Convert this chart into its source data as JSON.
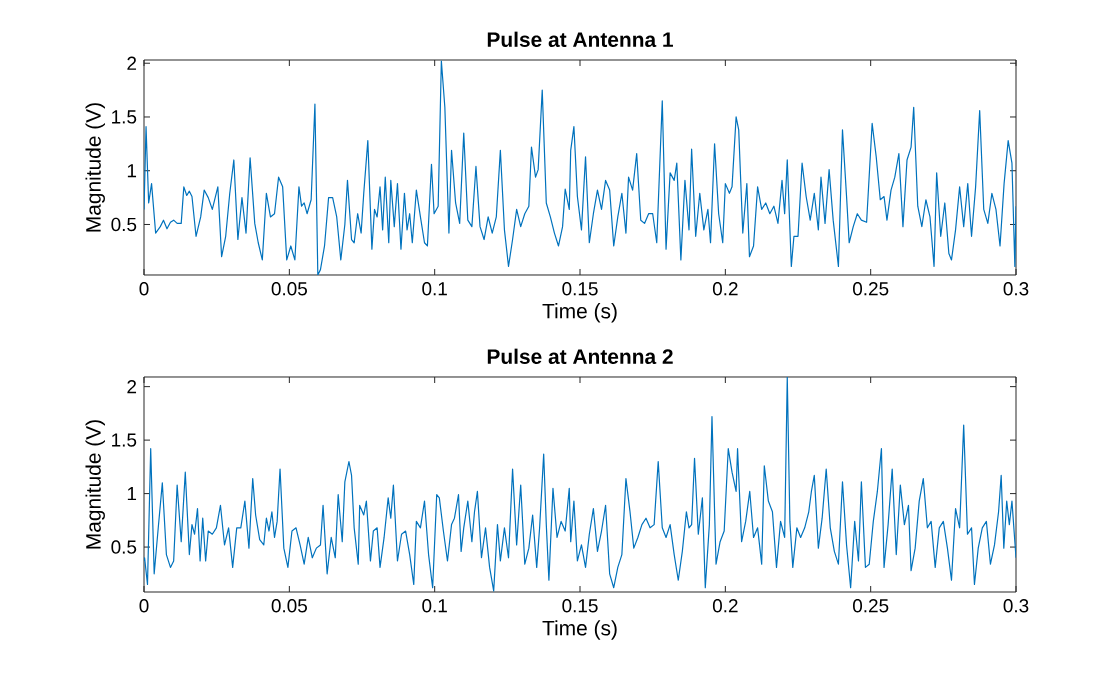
{
  "chart_data": [
    {
      "type": "line",
      "title": "Pulse at Antenna 1",
      "xlabel": "Time (s)",
      "ylabel": "Magnitude (V)",
      "xlim": [
        0,
        0.3
      ],
      "ylim": [
        0.03,
        2.03
      ],
      "xticks": [
        0,
        0.05,
        0.1,
        0.15,
        0.2,
        0.25,
        0.3
      ],
      "yticks": [
        0.5,
        1,
        1.5,
        2
      ],
      "x": [
        0,
        0.0007,
        0.0016,
        0.0026,
        0.004,
        0.0056,
        0.0067,
        0.0079,
        0.0091,
        0.0102,
        0.0114,
        0.0128,
        0.0137,
        0.0147,
        0.0156,
        0.0165,
        0.0179,
        0.0195,
        0.0207,
        0.0221,
        0.0235,
        0.0254,
        0.0267,
        0.0281,
        0.0295,
        0.0309,
        0.0323,
        0.0337,
        0.0351,
        0.0365,
        0.0381,
        0.0393,
        0.0407,
        0.0421,
        0.0435,
        0.0449,
        0.0463,
        0.0477,
        0.0491,
        0.0505,
        0.0519,
        0.0533,
        0.0542,
        0.0551,
        0.0561,
        0.0575,
        0.0588,
        0.0598,
        0.0607,
        0.0621,
        0.0635,
        0.0649,
        0.0663,
        0.0677,
        0.0691,
        0.07,
        0.0714,
        0.0723,
        0.0735,
        0.0747,
        0.0756,
        0.077,
        0.0784,
        0.0793,
        0.0802,
        0.0812,
        0.0821,
        0.083,
        0.0842,
        0.0849,
        0.0861,
        0.0872,
        0.0884,
        0.0896,
        0.0905,
        0.0914,
        0.0923,
        0.0937,
        0.0951,
        0.0965,
        0.0975,
        0.0989,
        0.0998,
        0.1012,
        0.1023,
        0.1035,
        0.1049,
        0.1058,
        0.1072,
        0.1086,
        0.11,
        0.1114,
        0.1128,
        0.1142,
        0.1156,
        0.117,
        0.1184,
        0.1198,
        0.1212,
        0.1226,
        0.124,
        0.1254,
        0.1268,
        0.1282,
        0.1296,
        0.131,
        0.1324,
        0.1333,
        0.1347,
        0.1356,
        0.137,
        0.1384,
        0.1398,
        0.1412,
        0.1426,
        0.144,
        0.1449,
        0.1463,
        0.1468,
        0.1479,
        0.1491,
        0.1505,
        0.1519,
        0.1532,
        0.1546,
        0.156,
        0.1574,
        0.1588,
        0.1602,
        0.1616,
        0.163,
        0.1644,
        0.1658,
        0.1667,
        0.1681,
        0.1695,
        0.1709,
        0.1722,
        0.1736,
        0.175,
        0.1764,
        0.1783,
        0.1796,
        0.181,
        0.1824,
        0.1833,
        0.1847,
        0.1861,
        0.1875,
        0.1884,
        0.1898,
        0.1912,
        0.1926,
        0.194,
        0.1949,
        0.1963,
        0.1977,
        0.1991,
        0.2,
        0.2014,
        0.2023,
        0.2037,
        0.2046,
        0.206,
        0.2074,
        0.2083,
        0.2097,
        0.2111,
        0.2125,
        0.2139,
        0.2153,
        0.2167,
        0.2181,
        0.2195,
        0.2204,
        0.2213,
        0.2227,
        0.2236,
        0.225,
        0.2264,
        0.2278,
        0.2292,
        0.2306,
        0.232,
        0.2329,
        0.2343,
        0.2357,
        0.2371,
        0.2389,
        0.2403,
        0.2417,
        0.2426,
        0.244,
        0.2454,
        0.2468,
        0.2486,
        0.2505,
        0.2519,
        0.2533,
        0.2546,
        0.2556,
        0.257,
        0.2583,
        0.2597,
        0.2611,
        0.2625,
        0.2639,
        0.2648,
        0.2662,
        0.2676,
        0.269,
        0.2704,
        0.2718,
        0.2727,
        0.2741,
        0.2755,
        0.2769,
        0.2778,
        0.2792,
        0.2806,
        0.282,
        0.2834,
        0.2847,
        0.2861,
        0.2875,
        0.2889,
        0.2903,
        0.2917,
        0.2931,
        0.2945,
        0.2959,
        0.2973,
        0.2986,
        0.2996,
        0.3
      ],
      "series": [
        {
          "color": "#0072bd",
          "values": [
            0.64,
            1.41,
            0.7,
            0.88,
            0.42,
            0.48,
            0.54,
            0.46,
            0.52,
            0.54,
            0.51,
            0.51,
            0.85,
            0.77,
            0.81,
            0.76,
            0.39,
            0.57,
            0.82,
            0.75,
            0.64,
            0.85,
            0.2,
            0.39,
            0.79,
            1.1,
            0.36,
            0.75,
            0.42,
            1.12,
            0.51,
            0.33,
            0.17,
            0.79,
            0.57,
            0.6,
            0.94,
            0.85,
            0.17,
            0.3,
            0.17,
            0.85,
            0.67,
            0.7,
            0.6,
            0.73,
            1.62,
            0.03,
            0.08,
            0.3,
            0.75,
            0.75,
            0.57,
            0.17,
            0.5,
            0.91,
            0.36,
            0.33,
            0.6,
            0.42,
            0.79,
            1.28,
            0.27,
            0.64,
            0.57,
            0.85,
            0.45,
            0.94,
            0.33,
            0.91,
            0.48,
            0.88,
            0.27,
            0.79,
            0.45,
            0.6,
            0.33,
            0.82,
            0.57,
            0.33,
            0.3,
            1.06,
            0.6,
            0.67,
            2.02,
            1.59,
            0.42,
            1.19,
            0.7,
            0.51,
            1.35,
            0.54,
            0.48,
            1.04,
            0.48,
            0.36,
            0.57,
            0.42,
            0.57,
            1.19,
            0.45,
            0.11,
            0.36,
            0.64,
            0.48,
            0.6,
            0.67,
            1.22,
            0.94,
            1.01,
            1.75,
            0.7,
            0.57,
            0.42,
            0.3,
            0.48,
            0.83,
            0.64,
            1.19,
            1.41,
            0.76,
            0.45,
            1.13,
            0.33,
            0.6,
            0.82,
            0.64,
            0.91,
            0.82,
            0.3,
            0.57,
            0.79,
            0.42,
            0.94,
            0.82,
            1.16,
            0.54,
            0.51,
            0.6,
            0.6,
            0.33,
            1.65,
            0.27,
            0.98,
            0.91,
            1.07,
            0.17,
            0.91,
            0.45,
            1.2,
            0.39,
            0.79,
            0.45,
            0.64,
            0.33,
            1.25,
            0.6,
            0.33,
            0.88,
            0.79,
            0.85,
            1.5,
            1.38,
            0.42,
            0.88,
            0.2,
            0.3,
            0.85,
            0.64,
            0.7,
            0.6,
            0.67,
            0.51,
            0.91,
            0.6,
            1.1,
            0.11,
            0.39,
            0.39,
            1.07,
            0.76,
            0.54,
            0.79,
            0.45,
            0.94,
            0.51,
            1.01,
            0.54,
            0.11,
            1.38,
            0.76,
            0.33,
            0.48,
            0.6,
            0.54,
            0.52,
            1.44,
            1.13,
            0.73,
            0.76,
            0.54,
            0.82,
            0.94,
            1.16,
            0.48,
            1.1,
            1.22,
            1.59,
            0.67,
            0.48,
            0.73,
            0.57,
            0.11,
            0.98,
            0.39,
            0.7,
            0.23,
            0.17,
            0.45,
            0.85,
            0.48,
            0.88,
            0.39,
            0.85,
            1.56,
            0.64,
            0.51,
            0.79,
            0.64,
            0.3,
            0.88,
            1.28,
            1.07,
            0.11,
            0.67
          ]
        }
      ]
    },
    {
      "type": "line",
      "title": "Pulse at Antenna 2",
      "xlabel": "Time (s)",
      "ylabel": "Magnitude (V)",
      "xlim": [
        0,
        0.3
      ],
      "ylim": [
        0.08,
        2.09
      ],
      "xticks": [
        0,
        0.05,
        0.1,
        0.15,
        0.2,
        0.25,
        0.3
      ],
      "yticks": [
        0.5,
        1,
        1.5,
        2
      ],
      "x": [
        0,
        0.0002,
        0.0012,
        0.0023,
        0.0035,
        0.0049,
        0.0063,
        0.0077,
        0.0091,
        0.0102,
        0.0114,
        0.0128,
        0.0142,
        0.0156,
        0.0165,
        0.0174,
        0.0184,
        0.0193,
        0.0202,
        0.0212,
        0.0221,
        0.0235,
        0.0249,
        0.0263,
        0.0277,
        0.0291,
        0.0305,
        0.0319,
        0.0333,
        0.0347,
        0.0361,
        0.0374,
        0.0384,
        0.0398,
        0.0412,
        0.0421,
        0.043,
        0.044,
        0.0449,
        0.0458,
        0.0468,
        0.0481,
        0.0495,
        0.0509,
        0.0523,
        0.0537,
        0.0551,
        0.0565,
        0.0579,
        0.0593,
        0.0607,
        0.0616,
        0.063,
        0.0644,
        0.0658,
        0.0668,
        0.0682,
        0.0691,
        0.0705,
        0.0714,
        0.0723,
        0.0737,
        0.0742,
        0.0756,
        0.0765,
        0.0779,
        0.0789,
        0.0802,
        0.0812,
        0.0826,
        0.084,
        0.0849,
        0.0858,
        0.0872,
        0.0886,
        0.09,
        0.0914,
        0.0928,
        0.0937,
        0.0951,
        0.0965,
        0.0979,
        0.0993,
        0.1007,
        0.1016,
        0.103,
        0.1044,
        0.1058,
        0.1068,
        0.1082,
        0.1091,
        0.11,
        0.1114,
        0.1128,
        0.1137,
        0.1147,
        0.1161,
        0.1175,
        0.1189,
        0.1203,
        0.1216,
        0.1226,
        0.124,
        0.1254,
        0.1268,
        0.1282,
        0.1296,
        0.131,
        0.1324,
        0.1337,
        0.1351,
        0.1361,
        0.1375,
        0.1384,
        0.1393,
        0.1407,
        0.1421,
        0.1435,
        0.1449,
        0.1463,
        0.1468,
        0.1479,
        0.1491,
        0.1505,
        0.1519,
        0.1532,
        0.1546,
        0.156,
        0.1574,
        0.1588,
        0.1602,
        0.1616,
        0.163,
        0.1644,
        0.1658,
        0.1672,
        0.1685,
        0.1699,
        0.1713,
        0.1727,
        0.1741,
        0.1755,
        0.1769,
        0.1783,
        0.1796,
        0.181,
        0.1824,
        0.1838,
        0.1852,
        0.1866,
        0.1875,
        0.1884,
        0.1894,
        0.1907,
        0.1921,
        0.1931,
        0.1945,
        0.1954,
        0.1968,
        0.1982,
        0.1996,
        0.201,
        0.2023,
        0.2037,
        0.2042,
        0.2056,
        0.207,
        0.2084,
        0.2097,
        0.2111,
        0.2125,
        0.2134,
        0.2148,
        0.2162,
        0.2176,
        0.219,
        0.2204,
        0.2213,
        0.2222,
        0.2232,
        0.2246,
        0.2259,
        0.2273,
        0.2287,
        0.2296,
        0.2306,
        0.232,
        0.2333,
        0.2347,
        0.2361,
        0.2375,
        0.2389,
        0.2403,
        0.2417,
        0.2431,
        0.2445,
        0.2458,
        0.2468,
        0.2482,
        0.2495,
        0.2509,
        0.2523,
        0.2537,
        0.2546,
        0.256,
        0.2574,
        0.2588,
        0.2602,
        0.2616,
        0.263,
        0.2639,
        0.2653,
        0.2667,
        0.2681,
        0.2695,
        0.2708,
        0.2722,
        0.2736,
        0.275,
        0.2764,
        0.2778,
        0.2792,
        0.2806,
        0.282,
        0.2833,
        0.2847,
        0.2857,
        0.287,
        0.2884,
        0.2898,
        0.2912,
        0.2926,
        0.294,
        0.2949,
        0.2958,
        0.2968,
        0.2977,
        0.2986,
        0.2996,
        0.3
      ],
      "series": [
        {
          "color": "#0072bd",
          "values": [
            0.37,
            0.4,
            0.15,
            1.42,
            0.25,
            0.68,
            1.1,
            0.43,
            0.31,
            0.37,
            1.08,
            0.55,
            1.2,
            0.43,
            0.71,
            0.62,
            0.86,
            0.37,
            0.77,
            0.37,
            0.65,
            0.62,
            0.68,
            0.89,
            0.52,
            0.68,
            0.31,
            0.68,
            0.68,
            0.93,
            0.49,
            1.14,
            0.8,
            0.57,
            0.52,
            0.77,
            0.65,
            0.83,
            0.59,
            0.74,
            1.23,
            0.49,
            0.31,
            0.65,
            0.68,
            0.52,
            0.34,
            0.59,
            0.4,
            0.49,
            0.52,
            0.89,
            0.25,
            0.59,
            0.4,
            0.99,
            0.55,
            1.11,
            1.3,
            1.17,
            0.68,
            0.34,
            0.89,
            0.8,
            0.93,
            0.37,
            0.65,
            0.68,
            0.31,
            0.59,
            0.96,
            0.77,
            1.08,
            0.37,
            0.62,
            0.65,
            0.43,
            0.15,
            0.74,
            0.68,
            0.93,
            0.43,
            0.12,
            0.99,
            0.96,
            0.65,
            0.37,
            0.71,
            0.77,
            0.99,
            0.46,
            0.68,
            0.93,
            0.55,
            0.83,
            1.02,
            0.4,
            0.68,
            0.31,
            0.09,
            0.71,
            0.37,
            0.68,
            0.4,
            1.23,
            0.52,
            1.08,
            0.34,
            0.49,
            0.8,
            0.31,
            0.68,
            1.37,
            0.71,
            0.19,
            1.05,
            0.59,
            0.74,
            0.65,
            1.05,
            0.55,
            0.93,
            0.37,
            0.52,
            0.31,
            0.62,
            0.86,
            0.46,
            0.65,
            0.89,
            0.25,
            0.12,
            0.31,
            0.43,
            1.14,
            0.83,
            0.49,
            0.59,
            0.71,
            0.77,
            0.68,
            0.71,
            1.3,
            0.68,
            0.59,
            0.71,
            0.43,
            0.19,
            0.46,
            0.83,
            0.68,
            0.71,
            1.33,
            0.62,
            0.96,
            0.12,
            0.71,
            1.72,
            0.34,
            0.55,
            0.65,
            1.42,
            1.2,
            1.02,
            1.42,
            0.55,
            0.74,
            1.02,
            0.59,
            0.68,
            0.34,
            1.26,
            0.93,
            0.83,
            0.31,
            0.74,
            0.59,
            2.09,
            0.74,
            0.31,
            0.68,
            0.59,
            0.68,
            0.83,
            1.02,
            1.17,
            0.49,
            0.77,
            1.23,
            0.68,
            0.46,
            0.34,
            1.11,
            0.52,
            0.12,
            0.74,
            0.37,
            1.11,
            0.31,
            0.34,
            0.74,
            1.02,
            1.42,
            0.31,
            0.71,
            1.23,
            0.43,
            1.08,
            0.71,
            0.89,
            0.28,
            0.49,
            0.93,
            1.14,
            0.68,
            0.74,
            0.31,
            0.68,
            0.74,
            0.49,
            0.19,
            0.86,
            0.68,
            1.64,
            0.62,
            0.68,
            0.15,
            0.49,
            0.68,
            0.74,
            0.34,
            0.52,
            0.83,
            1.17,
            0.49,
            0.93,
            0.71,
            0.93,
            0.55,
            0.4
          ]
        }
      ]
    }
  ]
}
